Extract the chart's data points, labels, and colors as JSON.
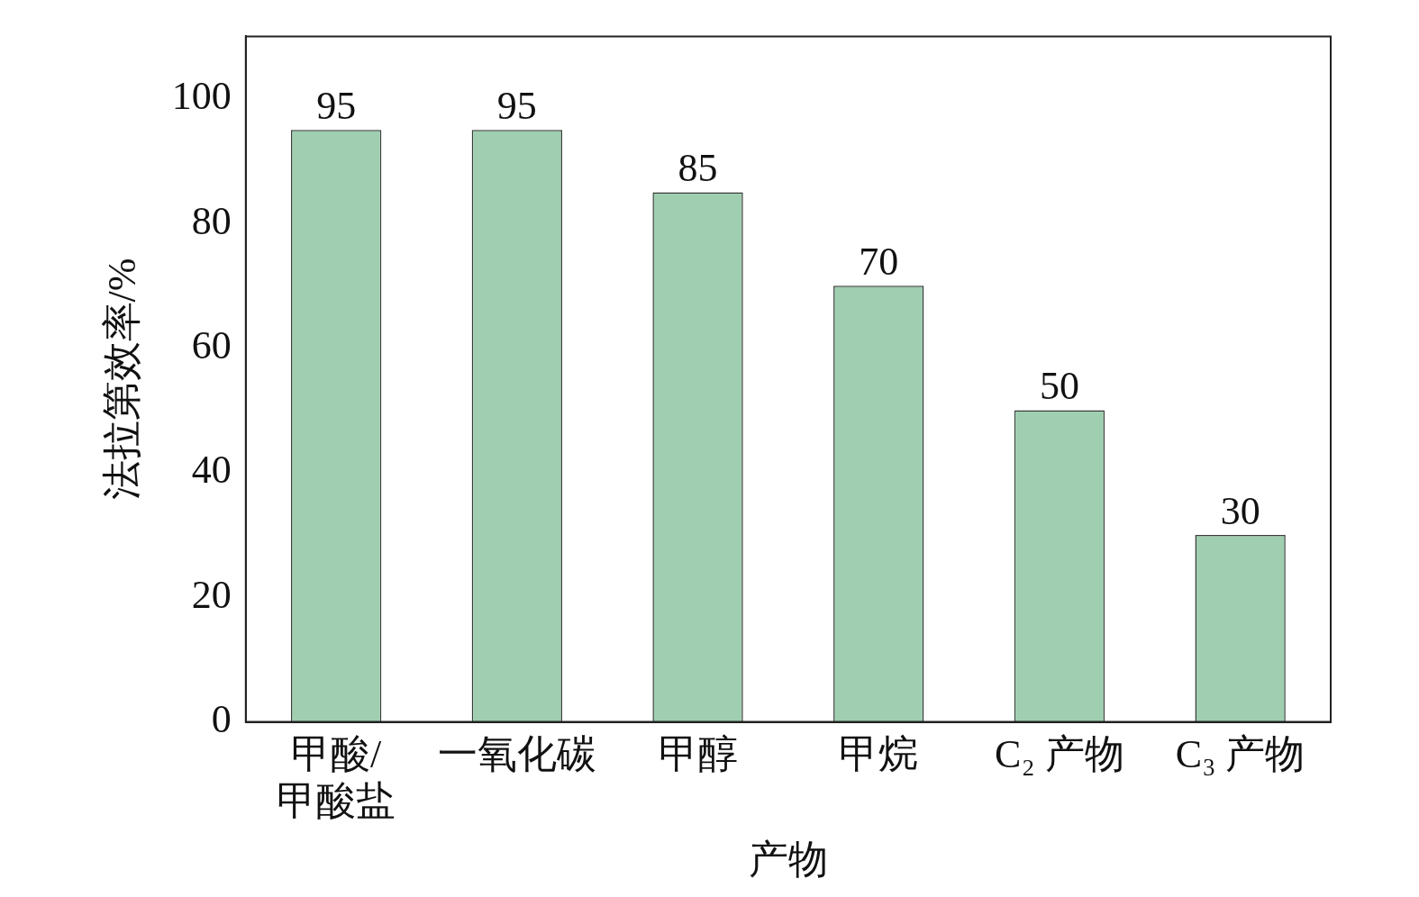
{
  "chart_data": {
    "type": "bar",
    "xlabel": "产物",
    "ylabel": "法拉第效率/%",
    "categories": [
      "甲酸/\n甲酸盐",
      "一氧化碳",
      "甲醇",
      "甲烷",
      "C₂ 产物",
      "C₃ 产物"
    ],
    "values": [
      95,
      95,
      85,
      70,
      50,
      30
    ],
    "color": "#9fcfb0",
    "ylim": [
      0,
      110
    ],
    "yticks": [
      0,
      20,
      40,
      60,
      80,
      100
    ],
    "grid": false,
    "legend": false,
    "data_labels": true
  }
}
